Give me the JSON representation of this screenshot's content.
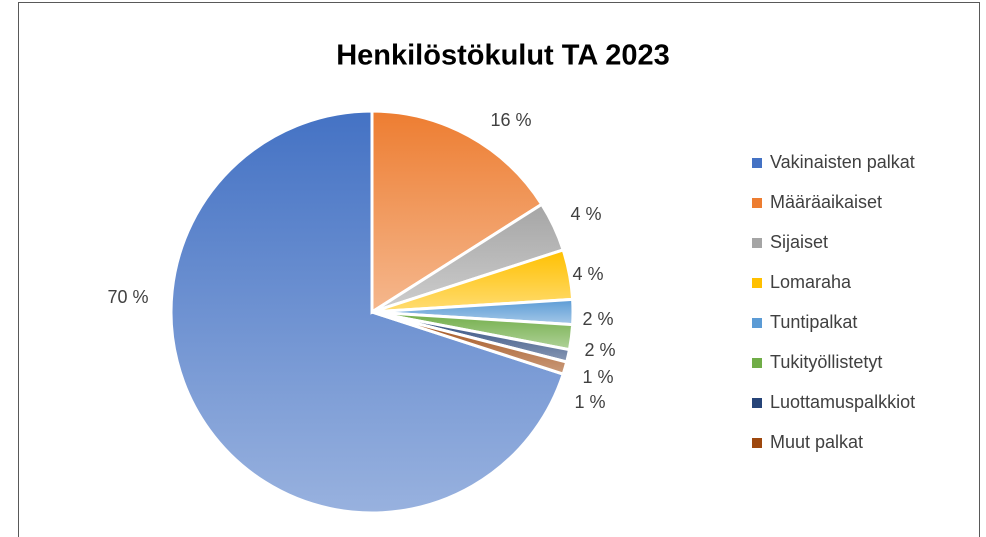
{
  "chart_data": {
    "type": "pie",
    "title": "Henkilöstökulut TA 2023",
    "categories": [
      "Vakinaisten palkat",
      "Määräaikaiset",
      "Sijaiset",
      "Lomaraha",
      "Tuntipalkat",
      "Tukityöllistetyt",
      "Luottamuspalkkiot",
      "Muut palkat"
    ],
    "values": [
      70,
      16,
      4,
      4,
      2,
      2,
      1,
      1
    ],
    "value_labels": [
      "70 %",
      "16 %",
      "4 %",
      "4 %",
      "2 %",
      "2 %",
      "1 %",
      "1 %"
    ],
    "colors": [
      "#4472c4",
      "#ed7d31",
      "#a5a5a5",
      "#ffc000",
      "#5b9bd5",
      "#70ad47",
      "#264478",
      "#9e480e"
    ],
    "legend": "right"
  }
}
